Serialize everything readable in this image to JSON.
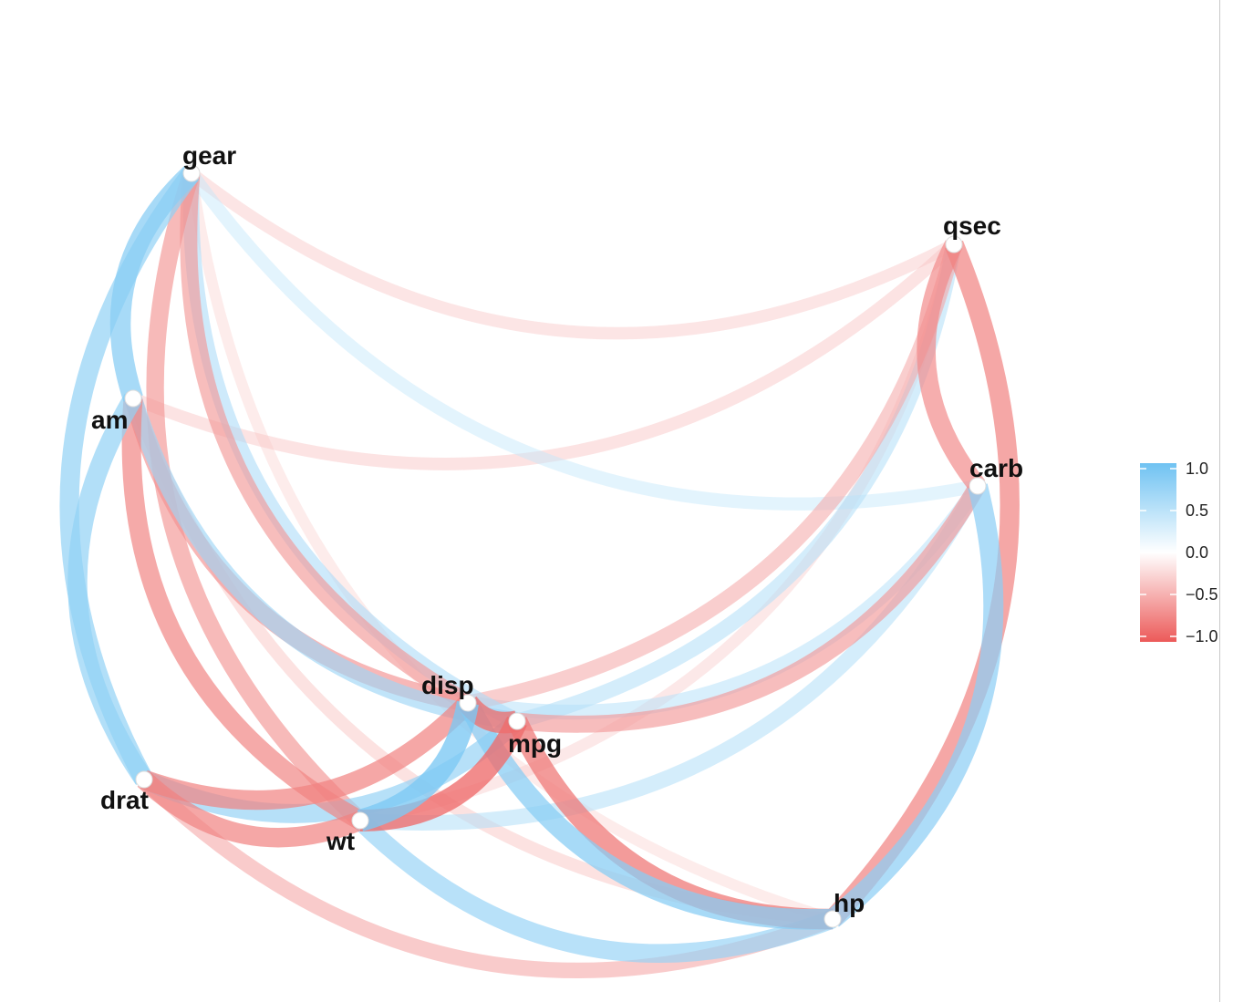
{
  "chart_data": {
    "type": "correlation-network",
    "nodes": [
      "gear",
      "qsec",
      "am",
      "carb",
      "disp",
      "mpg",
      "drat",
      "wt",
      "hp"
    ],
    "edges": [
      {
        "source": "gear",
        "target": "am",
        "value": 0.79
      },
      {
        "source": "gear",
        "target": "drat",
        "value": 0.7
      },
      {
        "source": "gear",
        "target": "disp",
        "value": -0.56
      },
      {
        "source": "gear",
        "target": "wt",
        "value": -0.58
      },
      {
        "source": "gear",
        "target": "mpg",
        "value": 0.48
      },
      {
        "source": "gear",
        "target": "qsec",
        "value": -0.21
      },
      {
        "source": "gear",
        "target": "carb",
        "value": 0.27
      },
      {
        "source": "gear",
        "target": "hp",
        "value": -0.13
      },
      {
        "source": "am",
        "target": "drat",
        "value": 0.71
      },
      {
        "source": "am",
        "target": "wt",
        "value": -0.69
      },
      {
        "source": "am",
        "target": "disp",
        "value": -0.59
      },
      {
        "source": "am",
        "target": "mpg",
        "value": 0.6
      },
      {
        "source": "am",
        "target": "qsec",
        "value": -0.23
      },
      {
        "source": "am",
        "target": "hp",
        "value": -0.24
      },
      {
        "source": "drat",
        "target": "wt",
        "value": -0.71
      },
      {
        "source": "drat",
        "target": "disp",
        "value": -0.71
      },
      {
        "source": "drat",
        "target": "mpg",
        "value": 0.68
      },
      {
        "source": "drat",
        "target": "hp",
        "value": -0.45
      },
      {
        "source": "wt",
        "target": "disp",
        "value": 0.89
      },
      {
        "source": "wt",
        "target": "mpg",
        "value": -0.87
      },
      {
        "source": "wt",
        "target": "hp",
        "value": 0.66
      },
      {
        "source": "wt",
        "target": "carb",
        "value": 0.43
      },
      {
        "source": "wt",
        "target": "qsec",
        "value": -0.17
      },
      {
        "source": "disp",
        "target": "hp",
        "value": 0.79
      },
      {
        "source": "disp",
        "target": "mpg",
        "value": -0.85
      },
      {
        "source": "disp",
        "target": "carb",
        "value": 0.39
      },
      {
        "source": "disp",
        "target": "qsec",
        "value": -0.43
      },
      {
        "source": "mpg",
        "target": "hp",
        "value": -0.78
      },
      {
        "source": "mpg",
        "target": "carb",
        "value": -0.55
      },
      {
        "source": "mpg",
        "target": "qsec",
        "value": 0.42
      },
      {
        "source": "hp",
        "target": "carb",
        "value": 0.75
      },
      {
        "source": "hp",
        "target": "qsec",
        "value": -0.71
      },
      {
        "source": "qsec",
        "target": "carb",
        "value": -0.66
      }
    ],
    "colorbar": {
      "range": [
        -1.0,
        1.0
      ],
      "ticks": [
        "1.0",
        "0.5",
        "0.0",
        "−0.5",
        "−1.0"
      ],
      "colors": {
        "positive": "#6fc2f2",
        "neutral": "#ffffff",
        "negative": "#ec5a59"
      }
    },
    "legend_position": "right"
  }
}
